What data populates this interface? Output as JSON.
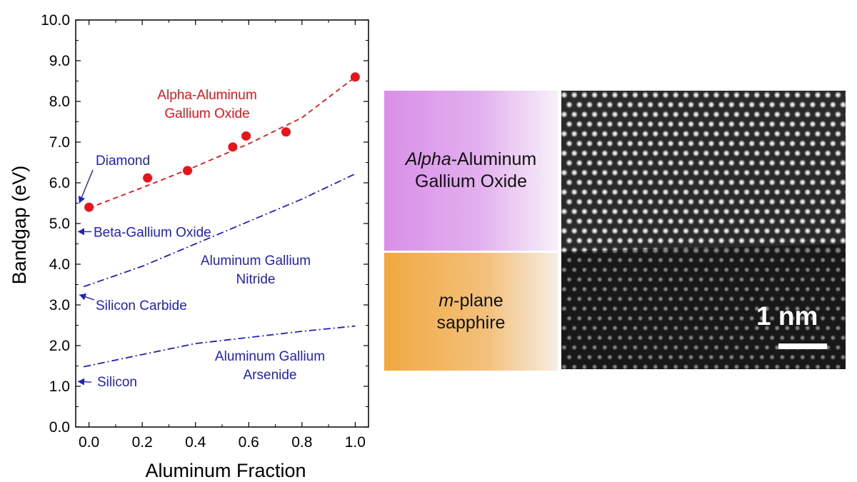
{
  "chart_data": {
    "type": "line",
    "xlabel": "Aluminum Fraction",
    "ylabel": "Bandgap (eV)",
    "xlim": [
      -0.05,
      1.05
    ],
    "ylim": [
      0.0,
      10.0
    ],
    "x_ticks": [
      "0.0",
      "0.2",
      "0.4",
      "0.6",
      "0.8",
      "1.0"
    ],
    "y_ticks": [
      "0.0",
      "1.0",
      "2.0",
      "3.0",
      "4.0",
      "5.0",
      "6.0",
      "7.0",
      "8.0",
      "9.0",
      "10.0"
    ],
    "grid": false,
    "series": [
      {
        "label_lines": [
          "Alpha-Aluminum",
          "Gallium Oxide"
        ],
        "style": "scatter",
        "color": "#e8141c",
        "points": [
          [
            0.0,
            5.4
          ],
          [
            0.22,
            6.12
          ],
          [
            0.37,
            6.3
          ],
          [
            0.54,
            6.88
          ],
          [
            0.59,
            7.15
          ],
          [
            0.74,
            7.25
          ],
          [
            1.0,
            8.6
          ]
        ]
      },
      {
        "label_lines": [
          "Alpha-Aluminum",
          "Gallium Oxide"
        ],
        "style": "dashed",
        "color": "#e8141c",
        "points": [
          [
            0.0,
            5.38
          ],
          [
            0.2,
            5.88
          ],
          [
            0.4,
            6.4
          ],
          [
            0.6,
            6.96
          ],
          [
            0.8,
            7.6
          ],
          [
            1.0,
            8.6
          ]
        ]
      },
      {
        "label_lines": [
          "Aluminum Gallium",
          "Nitride"
        ],
        "style": "dash-dot",
        "color": "#2222bb",
        "points": [
          [
            -0.02,
            3.45
          ],
          [
            0.2,
            3.95
          ],
          [
            0.4,
            4.5
          ],
          [
            0.6,
            5.05
          ],
          [
            0.8,
            5.6
          ],
          [
            1.0,
            6.22
          ]
        ]
      },
      {
        "label_lines": [
          "Aluminum Gallium",
          "Arsenide"
        ],
        "style": "dash-dot",
        "color": "#2222bb",
        "points": [
          [
            -0.02,
            1.48
          ],
          [
            0.2,
            1.78
          ],
          [
            0.4,
            2.05
          ],
          [
            0.6,
            2.2
          ],
          [
            0.8,
            2.35
          ],
          [
            1.0,
            2.48
          ]
        ]
      }
    ],
    "reference_markers": [
      {
        "label": "Diamond",
        "value": 5.5
      },
      {
        "label": "Beta-Gallium Oxide",
        "value": 4.8
      },
      {
        "label": "Silicon Carbide",
        "value": 3.25
      },
      {
        "label": "Silicon",
        "value": 1.12
      }
    ],
    "colors": {
      "red": "#e8141c",
      "blue": "#2222bb"
    }
  },
  "panel": {
    "top_layer": {
      "italic": "Alpha",
      "rest": "-Aluminum",
      "line2": "Gallium Oxide"
    },
    "bottom_layer": {
      "italic": "m",
      "rest": "-plane",
      "line2": "sapphire"
    },
    "scale_bar": "1 nm"
  }
}
